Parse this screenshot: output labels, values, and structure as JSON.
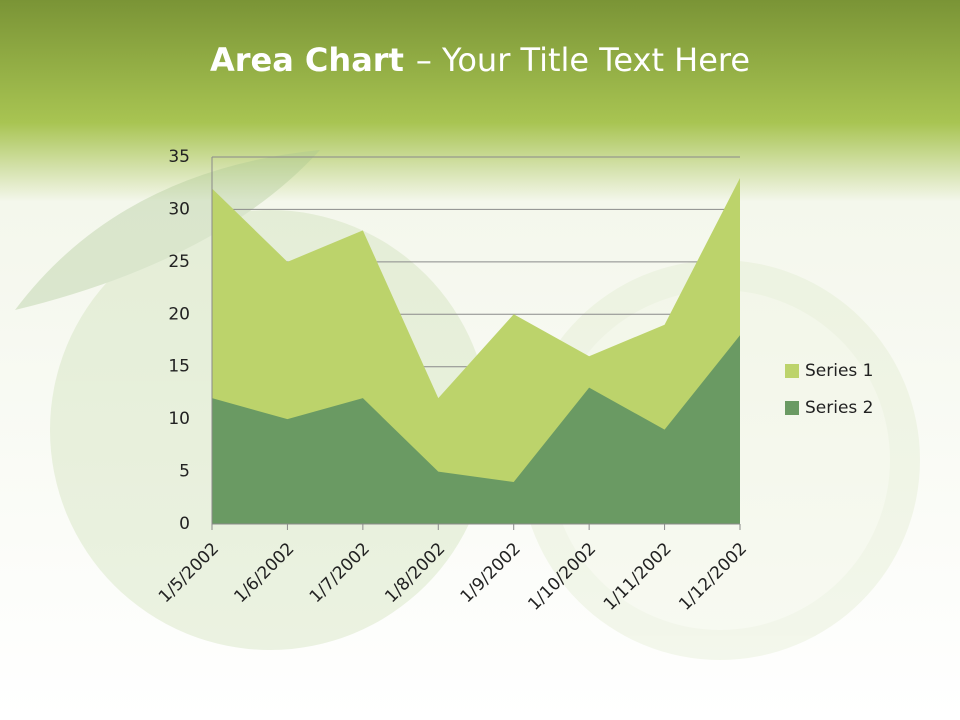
{
  "chart_data": {
    "type": "area",
    "title": "Area Chart",
    "subtitle": "– Your Title Text Here",
    "categories": [
      "1/5/2002",
      "1/6/2002",
      "1/7/2002",
      "1/8/2002",
      "1/9/2002",
      "1/10/2002",
      "1/11/2002",
      "1/12/2002"
    ],
    "series": [
      {
        "name": "Series 1",
        "color": "#bcd36b",
        "values": [
          32,
          25,
          28,
          12,
          20,
          16,
          19,
          33
        ]
      },
      {
        "name": "Series 2",
        "color": "#6a9a63",
        "values": [
          12,
          10,
          12,
          5,
          4,
          13,
          9,
          18
        ]
      }
    ],
    "ylim": [
      0,
      35
    ],
    "yticks": [
      0,
      5,
      10,
      15,
      20,
      25,
      30,
      35
    ],
    "grid": true,
    "legend": "right"
  }
}
